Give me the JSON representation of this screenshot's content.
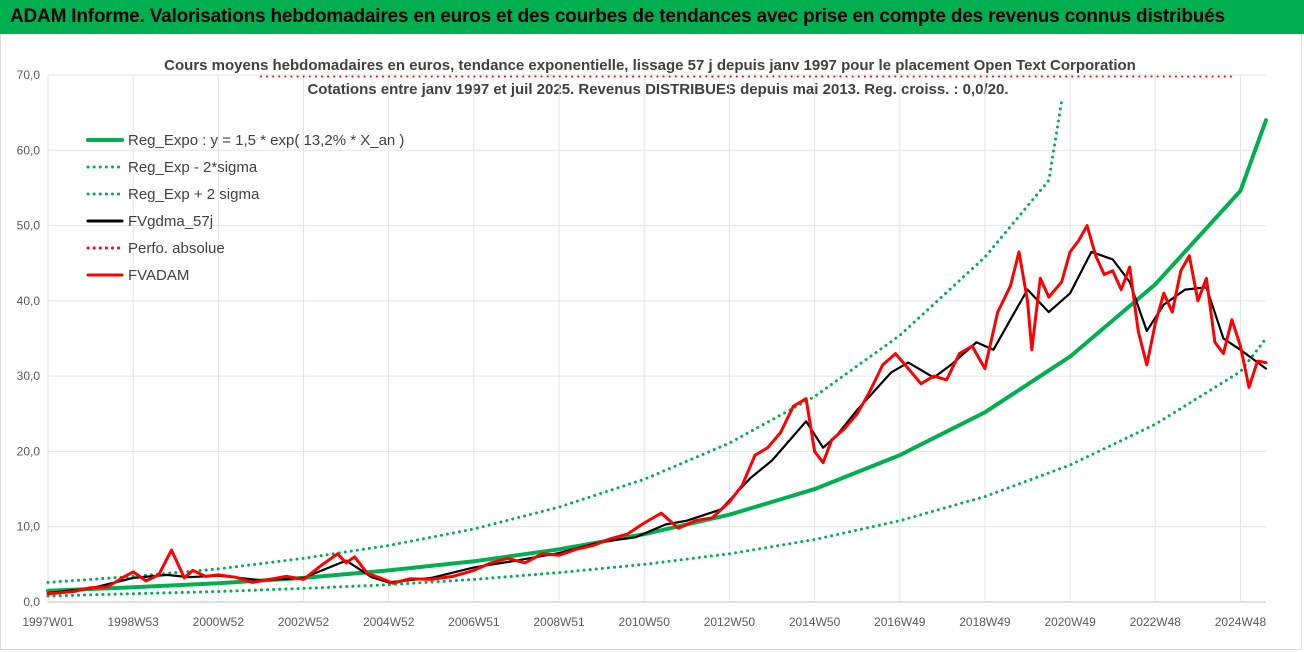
{
  "header": {
    "banner_text": "ADAM Informe. Valorisations hebdomadaires en euros et des courbes de tendances avec prise en compte des revenus connus distribués",
    "banner_color": "#00b050"
  },
  "chart_data": {
    "type": "line",
    "title": "Cours moyens hebdomadaires en euros, tendance exponentielle, lissage 57 j depuis janv 1997 pour le placement Open Text Corporation",
    "subtitle": "Cotations entre janv 1997 et juil 2025. Revenus DISTRIBUES depuis mai 2013. Reg. croiss. : 0,0/20.",
    "xlabel": "",
    "ylabel": "",
    "ylim": [
      0,
      70
    ],
    "y_ticks": [
      "0,0",
      "10,0",
      "20,0",
      "30,0",
      "40,0",
      "50,0",
      "60,0",
      "70,0"
    ],
    "x_range": [
      1997.0,
      2025.6
    ],
    "x_ticks": [
      {
        "label": "1997W01",
        "x": 1997.0
      },
      {
        "label": "1998W53",
        "x": 1999.0
      },
      {
        "label": "2000W52",
        "x": 2001.0
      },
      {
        "label": "2002W52",
        "x": 2003.0
      },
      {
        "label": "2004W52",
        "x": 2005.0
      },
      {
        "label": "2006W51",
        "x": 2007.0
      },
      {
        "label": "2008W51",
        "x": 2009.0
      },
      {
        "label": "2010W50",
        "x": 2011.0
      },
      {
        "label": "2012W50",
        "x": 2013.0
      },
      {
        "label": "2014W50",
        "x": 2015.0
      },
      {
        "label": "2016W49",
        "x": 2017.0
      },
      {
        "label": "2018W49",
        "x": 2019.0
      },
      {
        "label": "2020W49",
        "x": 2021.0
      },
      {
        "label": "2022W48",
        "x": 2023.0
      },
      {
        "label": "2024W48",
        "x": 2025.0
      }
    ],
    "grid": true,
    "legend_position": "top-left",
    "series": [
      {
        "name": "Reg_Expo : y = 1,5 * exp( 13,2% *  X_an )",
        "color": "#00b050",
        "style": "solid",
        "x": [
          1997.0,
          1999.0,
          2001.0,
          2003.0,
          2005.0,
          2007.0,
          2009.0,
          2011.0,
          2013.0,
          2015.0,
          2017.0,
          2019.0,
          2021.0,
          2023.0,
          2025.0,
          2025.6
        ],
        "values": [
          1.5,
          1.95,
          2.5,
          3.2,
          4.2,
          5.4,
          7.0,
          9.0,
          11.6,
          15.0,
          19.5,
          25.2,
          32.6,
          42.2,
          54.6,
          64.0
        ]
      },
      {
        "name": "Reg_Exp - 2*sigma",
        "color": "#00b050",
        "style": "dotted",
        "x": [
          1997.0,
          1999.0,
          2001.0,
          2003.0,
          2005.0,
          2007.0,
          2009.0,
          2011.0,
          2013.0,
          2015.0,
          2017.0,
          2019.0,
          2021.0,
          2023.0,
          2025.0,
          2025.6
        ],
        "values": [
          0.8,
          1.1,
          1.4,
          1.8,
          2.3,
          3.0,
          3.9,
          5.0,
          6.4,
          8.3,
          10.8,
          14.0,
          18.2,
          23.6,
          30.6,
          35.0
        ]
      },
      {
        "name": "Reg_Exp + 2 sigma",
        "color": "#00b050",
        "style": "dotted",
        "x": [
          1997.0,
          1999.0,
          2001.0,
          2003.0,
          2005.0,
          2007.0,
          2009.0,
          2011.0,
          2013.0,
          2015.0,
          2017.0,
          2019.0,
          2020.5,
          2020.8
        ],
        "values": [
          2.6,
          3.4,
          4.4,
          5.8,
          7.5,
          9.7,
          12.6,
          16.3,
          21.1,
          27.3,
          35.4,
          45.8,
          56.0,
          66.5
        ]
      },
      {
        "name": "FVgdma_57j",
        "color": "#000000",
        "style": "solid",
        "x": [
          1997.0,
          1998.0,
          1999.0,
          1999.8,
          2000.3,
          2001.0,
          2002.0,
          2003.0,
          2004.0,
          2004.6,
          2005.0,
          2006.0,
          2007.0,
          2008.0,
          2009.0,
          2010.0,
          2010.8,
          2011.5,
          2012.0,
          2012.8,
          2013.5,
          2014.0,
          2014.8,
          2015.2,
          2015.5,
          2016.0,
          2016.8,
          2017.2,
          2017.8,
          2018.2,
          2018.8,
          2019.2,
          2019.7,
          2020.0,
          2020.5,
          2021.0,
          2021.5,
          2022.0,
          2022.4,
          2022.8,
          2023.2,
          2023.7,
          2024.2,
          2024.6,
          2025.0,
          2025.6
        ],
        "values": [
          1.2,
          1.8,
          3.2,
          3.6,
          3.3,
          3.5,
          2.9,
          3.2,
          5.5,
          3.3,
          2.6,
          3.2,
          4.6,
          5.5,
          6.5,
          8.0,
          8.6,
          10.3,
          10.8,
          12.3,
          16.5,
          18.8,
          24.0,
          20.5,
          22.0,
          25.5,
          30.5,
          31.8,
          29.8,
          31.5,
          34.5,
          33.5,
          38.5,
          41.5,
          38.5,
          41.0,
          46.5,
          45.5,
          42.5,
          36.0,
          39.5,
          41.5,
          41.8,
          35.0,
          33.5,
          31.0
        ]
      },
      {
        "name": "Perfo. absolue",
        "color": "#ff0000",
        "style": "dotted",
        "x": [
          2002.0,
          2024.8
        ],
        "values": [
          69.8,
          69.8
        ]
      },
      {
        "name": "FVADAM",
        "color": "#ff0000",
        "style": "solid",
        "x": [
          1997.0,
          1997.6,
          1998.0,
          1998.4,
          1998.8,
          1999.0,
          1999.3,
          1999.6,
          1999.9,
          2000.2,
          2000.4,
          2000.7,
          2001.0,
          2001.4,
          2001.8,
          2002.2,
          2002.6,
          2003.0,
          2003.4,
          2003.8,
          2004.0,
          2004.2,
          2004.5,
          2004.8,
          2005.1,
          2005.5,
          2006.0,
          2006.5,
          2007.0,
          2007.4,
          2007.8,
          2008.2,
          2008.6,
          2009.0,
          2009.4,
          2009.8,
          2010.2,
          2010.6,
          2011.0,
          2011.4,
          2011.8,
          2012.2,
          2012.6,
          2013.0,
          2013.3,
          2013.6,
          2013.9,
          2014.2,
          2014.5,
          2014.8,
          2015.0,
          2015.2,
          2015.4,
          2015.7,
          2016.0,
          2016.3,
          2016.6,
          2016.9,
          2017.2,
          2017.5,
          2017.8,
          2018.1,
          2018.4,
          2018.7,
          2019.0,
          2019.3,
          2019.6,
          2019.8,
          2020.0,
          2020.1,
          2020.3,
          2020.5,
          2020.8,
          2021.0,
          2021.2,
          2021.4,
          2021.6,
          2021.8,
          2022.0,
          2022.2,
          2022.4,
          2022.6,
          2022.8,
          2023.0,
          2023.2,
          2023.4,
          2023.6,
          2023.8,
          2024.0,
          2024.2,
          2024.4,
          2024.6,
          2024.8,
          2025.0,
          2025.2,
          2025.4,
          2025.6
        ],
        "values": [
          1.1,
          1.4,
          1.9,
          2.0,
          3.4,
          4.0,
          2.8,
          3.6,
          6.9,
          3.2,
          4.2,
          3.4,
          3.6,
          3.3,
          2.6,
          3.0,
          3.4,
          3.0,
          4.8,
          6.4,
          5.2,
          6.0,
          3.8,
          3.2,
          2.5,
          3.1,
          3.0,
          3.4,
          4.2,
          5.2,
          5.8,
          5.2,
          6.4,
          6.2,
          7.0,
          7.5,
          8.4,
          9.0,
          10.5,
          11.8,
          9.8,
          10.8,
          11.2,
          13.3,
          15.5,
          19.5,
          20.5,
          22.5,
          26.0,
          27.0,
          20.0,
          18.5,
          21.5,
          23.0,
          25.0,
          28.0,
          31.5,
          33.0,
          31.0,
          29.0,
          30.0,
          29.5,
          33.0,
          34.0,
          31.0,
          38.5,
          42.0,
          46.5,
          40.0,
          33.5,
          43.0,
          40.5,
          42.5,
          46.5,
          48.0,
          50.0,
          46.0,
          43.5,
          44.0,
          41.5,
          44.5,
          36.0,
          31.5,
          37.0,
          41.0,
          38.5,
          44.0,
          46.0,
          40.0,
          43.0,
          34.5,
          33.0,
          37.5,
          34.0,
          28.5,
          32.0,
          31.8
        ]
      }
    ]
  }
}
